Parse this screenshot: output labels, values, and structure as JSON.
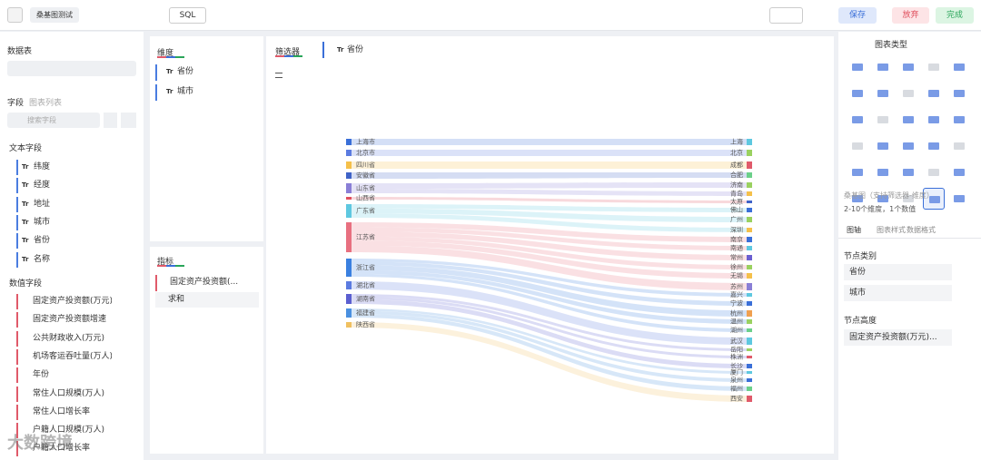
{
  "header": {
    "chart_name": "桑基图测试",
    "sql": "SQL",
    "save": "保存",
    "discard": "放弃",
    "done": "完成"
  },
  "left_panel": {
    "dataset_title": "数据表",
    "fields_tab": "字段",
    "chart_list_tab": "图表列表",
    "search_placeholder": "搜索字段",
    "text_icon": "Tr",
    "text_fields_title": "文本字段",
    "text_fields": [
      "纬度",
      "经度",
      "地址",
      "城市",
      "省份",
      "名称"
    ],
    "numeric_fields_title": "数值字段",
    "numeric_fields": [
      "固定资产投资额(万元)",
      "固定资产投资额增速",
      "公共财政收入(万元)",
      "机场客运吞吐量(万人)",
      "年份",
      "常住人口规模(万人)",
      "常住人口增长率",
      "户籍人口规模(万人)",
      "户籍人口增长率"
    ]
  },
  "config_panel": {
    "dimensions_title": "维度",
    "dimensions": [
      "省份",
      "城市"
    ],
    "measures_title": "指标",
    "measure": "固定资产投资额(...",
    "aggregation": "求和"
  },
  "chart_panel": {
    "filter_title": "筛选器",
    "filter_field": "省份",
    "sankey": {
      "groups": [
        {
          "source": "上海市",
          "targets": [
            "上海"
          ]
        },
        {
          "source": "北京市",
          "targets": [
            "北京"
          ]
        },
        {
          "source": "四川省",
          "targets": [
            "成都"
          ]
        },
        {
          "source": "安徽省",
          "targets": [
            "合肥"
          ]
        },
        {
          "source": "山东省",
          "targets": [
            "济南",
            "青岛"
          ]
        },
        {
          "source": "山西省",
          "targets": [
            "太原"
          ]
        },
        {
          "source": "广东省",
          "targets": [
            "佛山",
            "广州",
            "深圳"
          ]
        },
        {
          "source": "江苏省",
          "targets": [
            "南京",
            "南通",
            "常州",
            "徐州",
            "无锡",
            "苏州"
          ]
        },
        {
          "source": "浙江省",
          "targets": [
            "嘉兴",
            "宁波",
            "杭州",
            "温州",
            "湖州"
          ]
        },
        {
          "source": "湖北省",
          "targets": [
            "武汉"
          ]
        },
        {
          "source": "湖南省",
          "targets": [
            "岳阳",
            "株洲",
            "长沙"
          ]
        },
        {
          "source": "福建省",
          "targets": [
            "厦门",
            "泉州",
            "福州"
          ]
        },
        {
          "source": "陕西省",
          "targets": [
            "西安"
          ]
        }
      ]
    }
  },
  "right_panel": {
    "chart_type_title": "图表类型",
    "chart_desc": "桑基图（支持筛选器-维度）",
    "chart_req": "2-10个维度，1个数值",
    "tabs": [
      "图轴",
      "图表样式",
      "数据格式"
    ],
    "node_category_title": "节点类别",
    "node_categories": [
      "省份",
      "城市"
    ],
    "node_height_title": "节点高度",
    "node_height": "固定资产投资额(万元)..."
  },
  "watermark": "大数跨境"
}
